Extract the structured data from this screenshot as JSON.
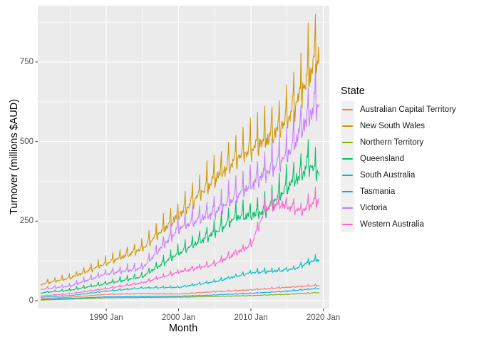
{
  "chart_data": {
    "type": "line",
    "title": "",
    "xlabel": "Month",
    "ylabel": "Turnover (millions $AUD)",
    "legend_title": "State",
    "legend_position": "right",
    "grid": true,
    "frequency": "monthly",
    "x_range_years": [
      1981.0,
      2019.42
    ],
    "ylim": [
      0,
      890
    ],
    "x_tick_labels": [
      "1990 Jan",
      "2000 Jan",
      "2010 Jan",
      "2020 Jan"
    ],
    "x_tick_years": [
      1990,
      2000,
      2010,
      2020
    ],
    "x_minor_years": [
      1985,
      1995,
      2005,
      2015
    ],
    "y_tick_labels": [
      "0",
      "250",
      "500",
      "750"
    ],
    "y_tick_values": [
      0,
      250,
      500,
      750
    ],
    "y_minor_values": [
      125,
      375,
      625,
      875
    ],
    "axis_colors": {
      "panel_bg": "#EBEBEB",
      "grid": "#FFFFFF",
      "tick_mark": "#333333",
      "tick_label": "#4D4D4D",
      "title": "#000000"
    },
    "seasonal_multipliers": {
      "large": [
        0.96,
        0.93,
        0.99,
        0.98,
        1.0,
        0.97,
        0.99,
        0.99,
        1.0,
        1.03,
        1.06,
        1.18
      ],
      "mid": [
        0.97,
        0.95,
        0.99,
        0.99,
        1.0,
        0.98,
        1.0,
        1.0,
        1.0,
        1.02,
        1.04,
        1.11
      ],
      "small": [
        0.98,
        0.96,
        0.99,
        0.99,
        1.0,
        0.99,
        1.0,
        1.0,
        1.0,
        1.01,
        1.03,
        1.08
      ]
    },
    "series": [
      {
        "name": "Australian Capital Territory",
        "color": "#F8766D",
        "group": "small",
        "anchors": [
          [
            1981,
            7
          ],
          [
            1985,
            11
          ],
          [
            1990,
            20
          ],
          [
            1995,
            22
          ],
          [
            2000,
            21
          ],
          [
            2005,
            28
          ],
          [
            2010,
            34
          ],
          [
            2015,
            42
          ],
          [
            2019,
            48
          ]
        ]
      },
      {
        "name": "New South Wales",
        "color": "#CD9600",
        "group": "large",
        "anchors": [
          [
            1981,
            52
          ],
          [
            1985,
            72
          ],
          [
            1990,
            118
          ],
          [
            1995,
            165
          ],
          [
            2000,
            270
          ],
          [
            2005,
            385
          ],
          [
            2008,
            450
          ],
          [
            2010,
            480
          ],
          [
            2013,
            525
          ],
          [
            2015,
            575
          ],
          [
            2017,
            660
          ],
          [
            2019,
            770
          ]
        ]
      },
      {
        "name": "Northern Territory",
        "color": "#7CAE00",
        "group": "small",
        "anchors": [
          [
            1981,
            1.5
          ],
          [
            1985,
            5
          ],
          [
            1990,
            9
          ],
          [
            1995,
            10
          ],
          [
            2000,
            11
          ],
          [
            2005,
            13
          ],
          [
            2010,
            16
          ],
          [
            2015,
            20
          ],
          [
            2019,
            25
          ]
        ]
      },
      {
        "name": "Queensland",
        "color": "#00BE67",
        "group": "large",
        "anchors": [
          [
            1981,
            25
          ],
          [
            1985,
            33
          ],
          [
            1990,
            54
          ],
          [
            1995,
            76
          ],
          [
            2000,
            150
          ],
          [
            2005,
            215
          ],
          [
            2008,
            265
          ],
          [
            2010,
            270
          ],
          [
            2012,
            285
          ],
          [
            2015,
            360
          ],
          [
            2017,
            400
          ],
          [
            2018,
            435
          ],
          [
            2019,
            405
          ]
        ]
      },
      {
        "name": "South Australia",
        "color": "#00BFC4",
        "group": "mid",
        "anchors": [
          [
            1981,
            11
          ],
          [
            1985,
            16
          ],
          [
            1990,
            30
          ],
          [
            1995,
            40
          ],
          [
            2000,
            42
          ],
          [
            2005,
            60
          ],
          [
            2010,
            88
          ],
          [
            2014,
            95
          ],
          [
            2016,
            100
          ],
          [
            2018,
            120
          ],
          [
            2019,
            128
          ]
        ]
      },
      {
        "name": "Tasmania",
        "color": "#00A9FF",
        "group": "small",
        "anchors": [
          [
            1981,
            3.5
          ],
          [
            1990,
            12
          ],
          [
            1995,
            13
          ],
          [
            2000,
            14
          ],
          [
            2005,
            18
          ],
          [
            2010,
            23
          ],
          [
            2015,
            30
          ],
          [
            2019,
            38
          ]
        ]
      },
      {
        "name": "Victoria",
        "color": "#C77CFF",
        "group": "large",
        "anchors": [
          [
            1981,
            36
          ],
          [
            1985,
            46
          ],
          [
            1990,
            85
          ],
          [
            1995,
            103
          ],
          [
            2000,
            228
          ],
          [
            2005,
            280
          ],
          [
            2010,
            365
          ],
          [
            2015,
            460
          ],
          [
            2019,
            625
          ]
        ]
      },
      {
        "name": "Western Australia",
        "color": "#FF61CC",
        "group": "mid",
        "anchors": [
          [
            1981,
            15
          ],
          [
            1985,
            22
          ],
          [
            1990,
            38
          ],
          [
            1995,
            56
          ],
          [
            2000,
            90
          ],
          [
            2005,
            115
          ],
          [
            2008,
            150
          ],
          [
            2010,
            175
          ],
          [
            2011,
            230
          ],
          [
            2012,
            290
          ],
          [
            2014,
            305
          ],
          [
            2016,
            290
          ],
          [
            2017,
            280
          ],
          [
            2018,
            300
          ],
          [
            2019,
            315
          ]
        ]
      }
    ]
  }
}
